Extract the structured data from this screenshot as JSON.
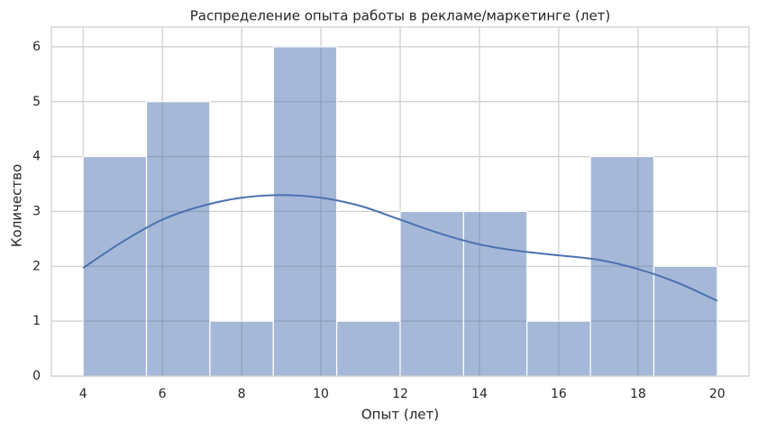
{
  "chart_data": {
    "type": "histogram",
    "title": "Распределение опыта работы в рекламе/маркетинге (лет)",
    "x_label": "Опыт (лет)",
    "y_label": "Количество",
    "bins": [
      4,
      5.6,
      7.2,
      8.8,
      10.4,
      12,
      13.6,
      15.2,
      16.8,
      18.4,
      20
    ],
    "values": [
      4,
      5,
      1,
      6,
      1,
      3,
      3,
      1,
      4,
      2
    ],
    "color": "#4c72b0",
    "kde": {
      "x": [
        4,
        5,
        6,
        7,
        8,
        9,
        10,
        11,
        12,
        13,
        14,
        15,
        16,
        17,
        18,
        19,
        20
      ],
      "y": [
        1.97,
        2.45,
        2.85,
        3.1,
        3.25,
        3.3,
        3.25,
        3.1,
        2.85,
        2.6,
        2.4,
        2.28,
        2.2,
        2.12,
        1.95,
        1.7,
        1.37
      ]
    },
    "xlim": [
      3.2,
      20.8
    ],
    "ylim": [
      0,
      6.36
    ],
    "xticks": [
      4,
      6,
      8,
      10,
      12,
      14,
      16,
      18,
      20
    ],
    "yticks": [
      0,
      1,
      2,
      3,
      4,
      5,
      6
    ],
    "grid": true
  }
}
